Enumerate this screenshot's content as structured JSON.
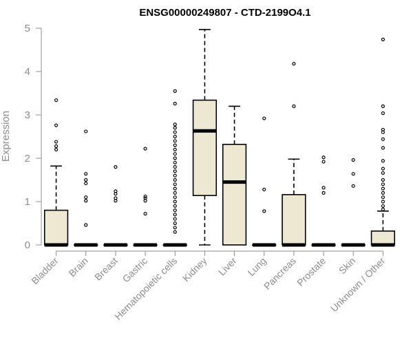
{
  "chart_data": {
    "type": "boxplot",
    "title": "ENSG00000249807 - CTD-2199O4.1",
    "xlabel": "",
    "ylabel": "Expression",
    "ylim": [
      0,
      5
    ],
    "yticks": [
      0,
      1,
      2,
      3,
      4,
      5
    ],
    "grid": false,
    "box_color": "#ede8d1",
    "categories": [
      "Bladder",
      "Brain",
      "Breast",
      "Gastric",
      "Hematopoietic cells",
      "Kidney",
      "Liver",
      "Lung",
      "Pancreas",
      "Prostate",
      "Skin",
      "Unknown / Other"
    ],
    "boxes": [
      {
        "q1": 0,
        "median": 0,
        "q3": 0.8,
        "whisker_low": 0,
        "whisker_high": 1.82,
        "outliers": [
          2.2,
          2.28,
          2.38,
          2.76,
          3.34
        ]
      },
      {
        "q1": 0,
        "median": 0,
        "q3": 0,
        "whisker_low": 0,
        "whisker_high": 0,
        "outliers": [
          0.46,
          1.02,
          1.1,
          1.42,
          1.5,
          1.64,
          2.62
        ]
      },
      {
        "q1": 0,
        "median": 0,
        "q3": 0,
        "whisker_low": 0,
        "whisker_high": 0,
        "outliers": [
          1.02,
          1.08,
          1.18,
          1.24,
          1.8
        ]
      },
      {
        "q1": 0,
        "median": 0,
        "q3": 0,
        "whisker_low": 0,
        "whisker_high": 0,
        "outliers": [
          0.72,
          1.02,
          1.08,
          1.12,
          2.22
        ]
      },
      {
        "q1": 0,
        "median": 0,
        "q3": 0,
        "whisker_low": 0,
        "whisker_high": 0,
        "outliers": [
          0.3,
          0.4,
          0.5,
          0.6,
          0.7,
          0.8,
          0.9,
          1.0,
          1.1,
          1.2,
          1.3,
          1.4,
          1.5,
          1.6,
          1.7,
          1.8,
          1.9,
          2.0,
          2.1,
          2.2,
          2.3,
          2.4,
          2.5,
          2.6,
          2.7,
          2.78,
          3.26,
          3.55
        ]
      },
      {
        "q1": 1.14,
        "median": 2.63,
        "q3": 3.34,
        "whisker_low": 0,
        "whisker_high": 4.97,
        "outliers": []
      },
      {
        "q1": 0,
        "median": 1.45,
        "q3": 2.32,
        "whisker_low": 0,
        "whisker_high": 3.2,
        "outliers": []
      },
      {
        "q1": 0,
        "median": 0,
        "q3": 0,
        "whisker_low": 0,
        "whisker_high": 0,
        "outliers": [
          0.78,
          1.28,
          2.92
        ]
      },
      {
        "q1": 0,
        "median": 0,
        "q3": 1.16,
        "whisker_low": 0,
        "whisker_high": 1.98,
        "outliers": [
          3.2,
          4.18
        ]
      },
      {
        "q1": 0,
        "median": 0,
        "q3": 0,
        "whisker_low": 0,
        "whisker_high": 0,
        "outliers": [
          1.2,
          1.32,
          1.92,
          2.02
        ]
      },
      {
        "q1": 0,
        "median": 0,
        "q3": 0,
        "whisker_low": 0,
        "whisker_high": 0,
        "outliers": [
          1.36,
          1.64,
          1.96
        ]
      },
      {
        "q1": 0,
        "median": 0,
        "q3": 0.32,
        "whisker_low": 0,
        "whisker_high": 0.78,
        "outliers": [
          0.82,
          0.9,
          1.0,
          1.1,
          1.2,
          1.3,
          1.4,
          1.5,
          1.66,
          1.76,
          1.94,
          2.24,
          2.44,
          2.6,
          2.66,
          3.04,
          3.2,
          4.74
        ]
      }
    ]
  }
}
